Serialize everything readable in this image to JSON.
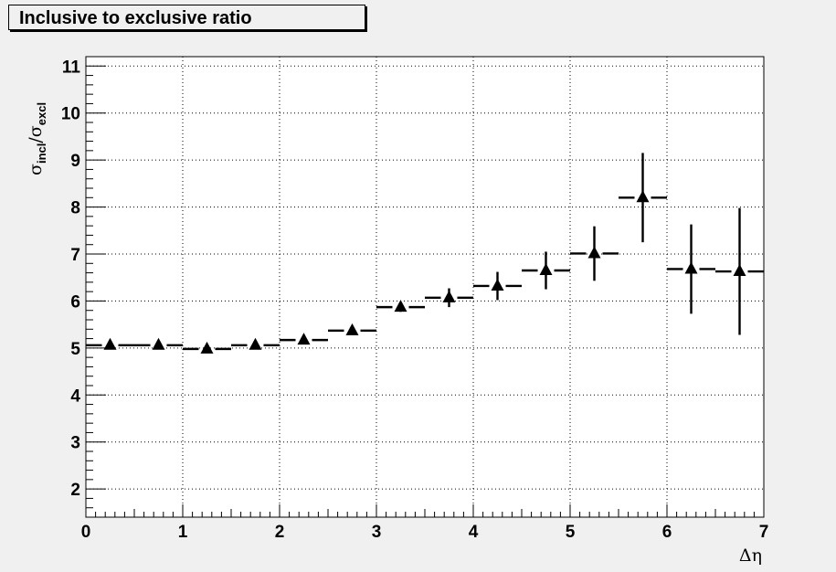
{
  "chart_data": {
    "type": "scatter",
    "title": "Inclusive to exclusive ratio",
    "xlabel": "Δη",
    "ylabel": {
      "base1": "σ",
      "sub1": "incl",
      "slash": "/",
      "base2": "σ",
      "sub2": "excl"
    },
    "xlim": [
      0,
      7
    ],
    "ylim": [
      1.4,
      11.2
    ],
    "x_ticks": [
      "0",
      "1",
      "2",
      "3",
      "4",
      "5",
      "6",
      "7"
    ],
    "y_ticks": [
      "2",
      "3",
      "4",
      "5",
      "6",
      "7",
      "8",
      "9",
      "10",
      "11"
    ],
    "grid": true,
    "marker": "triangle",
    "points": [
      {
        "x": 0.25,
        "y": 5.06,
        "xerr": 0.25,
        "yerr": 0.05
      },
      {
        "x": 0.75,
        "y": 5.06,
        "xerr": 0.25,
        "yerr": 0.05
      },
      {
        "x": 1.25,
        "y": 4.98,
        "xerr": 0.25,
        "yerr": 0.05
      },
      {
        "x": 1.75,
        "y": 5.06,
        "xerr": 0.25,
        "yerr": 0.05
      },
      {
        "x": 2.25,
        "y": 5.17,
        "xerr": 0.25,
        "yerr": 0.06
      },
      {
        "x": 2.75,
        "y": 5.37,
        "xerr": 0.25,
        "yerr": 0.07
      },
      {
        "x": 3.25,
        "y": 5.87,
        "xerr": 0.25,
        "yerr": 0.1
      },
      {
        "x": 3.75,
        "y": 6.07,
        "xerr": 0.25,
        "yerr": 0.2
      },
      {
        "x": 4.25,
        "y": 6.32,
        "xerr": 0.25,
        "yerr": 0.3
      },
      {
        "x": 4.75,
        "y": 6.65,
        "xerr": 0.25,
        "yerr": 0.4
      },
      {
        "x": 5.25,
        "y": 7.01,
        "xerr": 0.25,
        "yerr": 0.58
      },
      {
        "x": 5.75,
        "y": 8.2,
        "xerr": 0.25,
        "yerr": 0.95
      },
      {
        "x": 6.25,
        "y": 6.68,
        "xerr": 0.25,
        "yerr": 0.95
      },
      {
        "x": 6.75,
        "y": 6.63,
        "xerr": 0.25,
        "yerr": 1.35
      }
    ]
  }
}
